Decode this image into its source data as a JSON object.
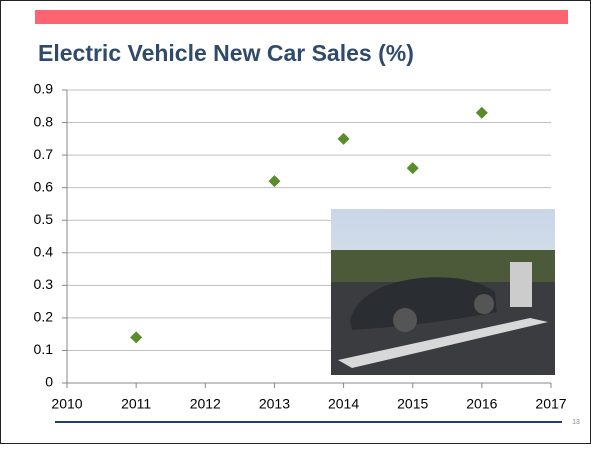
{
  "chart_data": {
    "type": "scatter",
    "title": "Electric Vehicle New Car Sales (%)",
    "x": [
      2011,
      2013,
      2014,
      2015,
      2016
    ],
    "values": [
      0.14,
      0.62,
      0.75,
      0.66,
      0.83
    ],
    "color": "#5b8c2a",
    "xlim": [
      2010,
      2017
    ],
    "xticks": [
      2010,
      2011,
      2012,
      2013,
      2014,
      2015,
      2016,
      2017
    ],
    "ylim": [
      0,
      0.9
    ],
    "yticks": [
      0,
      0.1,
      0.2,
      0.3,
      0.4,
      0.5,
      0.6,
      0.7,
      0.8,
      0.9
    ],
    "grid": true
  },
  "slide_number": "13"
}
